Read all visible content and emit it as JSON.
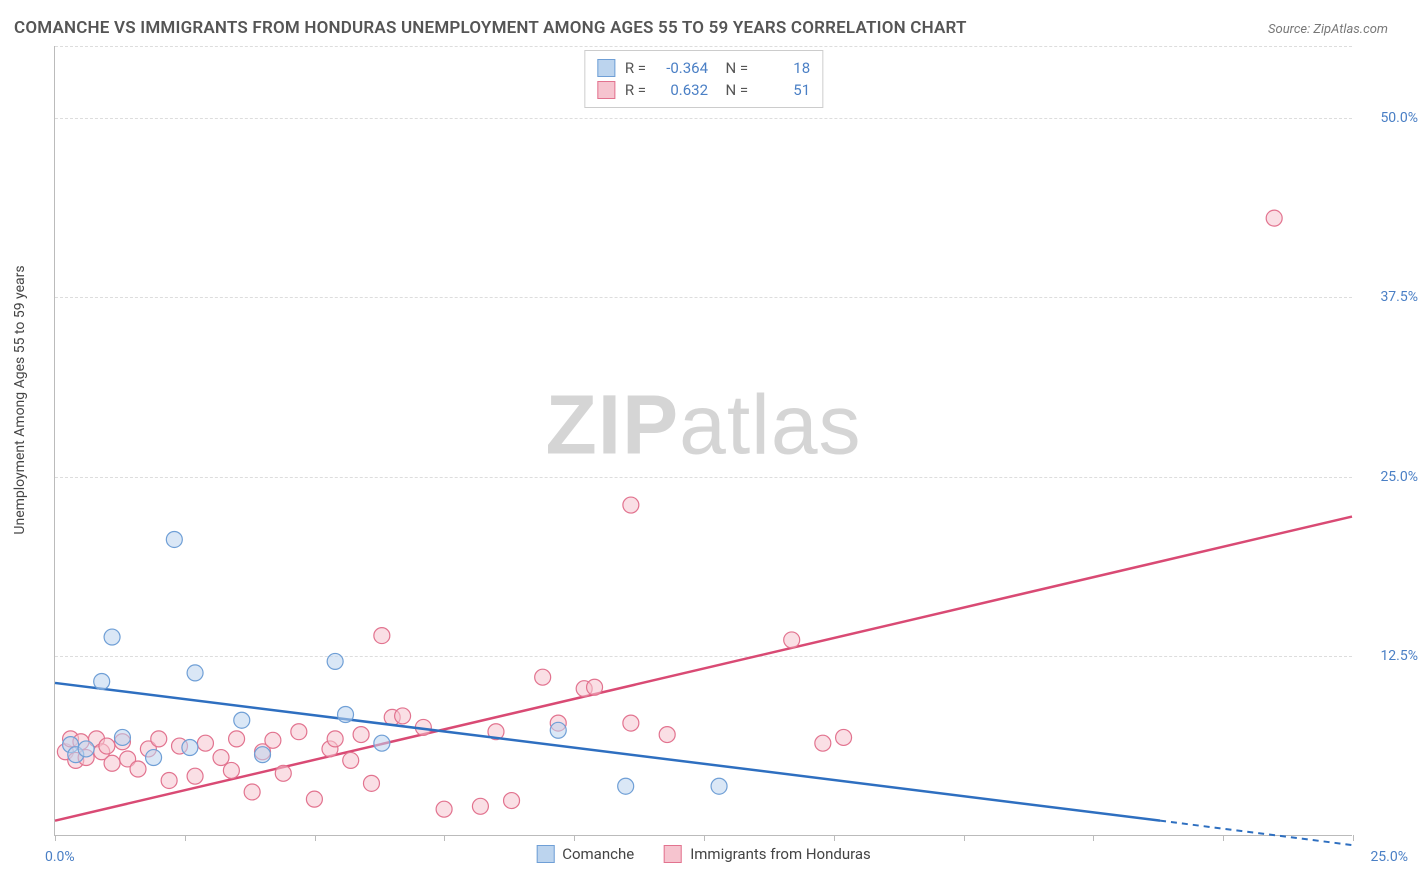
{
  "chart": {
    "type": "scatter-with-regression",
    "title": "COMANCHE VS IMMIGRANTS FROM HONDURAS UNEMPLOYMENT AMONG AGES 55 TO 59 YEARS CORRELATION CHART",
    "source": "Source: ZipAtlas.com",
    "watermark": {
      "part1": "ZIP",
      "part2": "atlas"
    },
    "ylabel": "Unemployment Among Ages 55 to 59 years",
    "xlim": [
      0,
      25
    ],
    "ylim": [
      0,
      55
    ],
    "x_ticks": [
      0,
      2.5,
      5,
      7.5,
      10,
      12.5,
      15,
      17.5,
      20,
      22.5,
      25
    ],
    "x_tick_labels": {
      "first": "0.0%",
      "last": "25.0%"
    },
    "y_gridlines": [
      12.5,
      25.0,
      37.5,
      50.0
    ],
    "y_tick_labels": [
      "12.5%",
      "25.0%",
      "37.5%",
      "50.0%"
    ],
    "background_color": "#ffffff",
    "grid_color": "#dddddd",
    "axis_color": "#bbbbbb",
    "series": [
      {
        "name": "Comanche",
        "color_fill": "#bcd4ee",
        "color_stroke": "#6f9fd6",
        "line_color": "#2e6fc0",
        "marker_radius": 8,
        "fill_opacity": 0.55,
        "R": "-0.364",
        "N": "18",
        "regression": {
          "x1": 0,
          "y1": 10.6,
          "x2": 21.3,
          "y2": 1.0,
          "extrap_x2": 25,
          "extrap_y2": -0.7
        },
        "points": [
          [
            0.3,
            6.3
          ],
          [
            0.4,
            5.6
          ],
          [
            0.6,
            6.0
          ],
          [
            0.9,
            10.7
          ],
          [
            1.1,
            13.8
          ],
          [
            1.3,
            6.8
          ],
          [
            1.9,
            5.4
          ],
          [
            2.3,
            20.6
          ],
          [
            2.6,
            6.1
          ],
          [
            2.7,
            11.3
          ],
          [
            3.6,
            8.0
          ],
          [
            4.0,
            5.6
          ],
          [
            5.4,
            12.1
          ],
          [
            5.6,
            8.4
          ],
          [
            6.3,
            6.4
          ],
          [
            9.7,
            7.3
          ],
          [
            11.0,
            3.4
          ],
          [
            12.8,
            3.4
          ]
        ]
      },
      {
        "name": "Immigrants from Honduras",
        "color_fill": "#f6c4cf",
        "color_stroke": "#e2738f",
        "line_color": "#d94a74",
        "marker_radius": 8,
        "fill_opacity": 0.55,
        "R": "0.632",
        "N": "51",
        "regression": {
          "x1": 0,
          "y1": 1.0,
          "x2": 25,
          "y2": 22.2
        },
        "points": [
          [
            0.2,
            5.8
          ],
          [
            0.3,
            6.7
          ],
          [
            0.4,
            5.2
          ],
          [
            0.5,
            6.5
          ],
          [
            0.6,
            5.4
          ],
          [
            0.8,
            6.7
          ],
          [
            0.9,
            5.8
          ],
          [
            1.0,
            6.2
          ],
          [
            1.1,
            5.0
          ],
          [
            1.3,
            6.5
          ],
          [
            1.4,
            5.3
          ],
          [
            1.6,
            4.6
          ],
          [
            1.8,
            6.0
          ],
          [
            2.0,
            6.7
          ],
          [
            2.2,
            3.8
          ],
          [
            2.4,
            6.2
          ],
          [
            2.7,
            4.1
          ],
          [
            2.9,
            6.4
          ],
          [
            3.2,
            5.4
          ],
          [
            3.4,
            4.5
          ],
          [
            3.5,
            6.7
          ],
          [
            3.8,
            3.0
          ],
          [
            4.0,
            5.8
          ],
          [
            4.2,
            6.6
          ],
          [
            4.4,
            4.3
          ],
          [
            4.7,
            7.2
          ],
          [
            5.0,
            2.5
          ],
          [
            5.3,
            6.0
          ],
          [
            5.4,
            6.7
          ],
          [
            5.7,
            5.2
          ],
          [
            5.9,
            7.0
          ],
          [
            6.1,
            3.6
          ],
          [
            6.3,
            13.9
          ],
          [
            6.5,
            8.2
          ],
          [
            6.7,
            8.3
          ],
          [
            7.1,
            7.5
          ],
          [
            7.5,
            1.8
          ],
          [
            8.2,
            2.0
          ],
          [
            8.5,
            7.2
          ],
          [
            8.8,
            2.4
          ],
          [
            9.4,
            11.0
          ],
          [
            9.7,
            7.8
          ],
          [
            10.2,
            10.2
          ],
          [
            10.4,
            10.3
          ],
          [
            11.1,
            7.8
          ],
          [
            11.1,
            23.0
          ],
          [
            11.8,
            7.0
          ],
          [
            14.2,
            13.6
          ],
          [
            14.8,
            6.4
          ],
          [
            15.2,
            6.8
          ],
          [
            23.5,
            43.0
          ]
        ]
      }
    ],
    "bottom_legend": [
      {
        "label": "Comanche",
        "fill": "#bcd4ee",
        "stroke": "#6f9fd6"
      },
      {
        "label": "Immigrants from Honduras",
        "fill": "#f6c4cf",
        "stroke": "#e2738f"
      }
    ]
  }
}
